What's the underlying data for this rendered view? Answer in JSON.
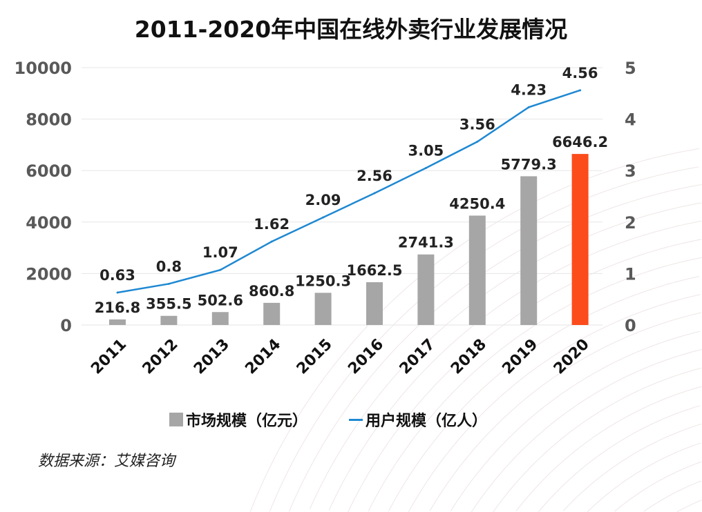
{
  "chart_data": {
    "type": "bar+line",
    "title": "2011-2020年中国在线外卖行业发展情况",
    "categories": [
      "2011",
      "2012",
      "2013",
      "2014",
      "2015",
      "2016",
      "2017",
      "2018",
      "2019",
      "2020"
    ],
    "series": [
      {
        "name": "市场规模（亿元）",
        "type": "bar",
        "axis": "left",
        "values": [
          216.8,
          355.5,
          502.6,
          860.8,
          1250.3,
          1662.5,
          2741.3,
          4250.4,
          5779.3,
          6646.2
        ],
        "color": "#a6a6a6",
        "highlight_color": "#fc4c1c",
        "highlight_index": 9
      },
      {
        "name": "用户规模（亿人）",
        "type": "line",
        "axis": "right",
        "values": [
          0.63,
          0.8,
          1.07,
          1.62,
          2.09,
          2.56,
          3.05,
          3.56,
          4.23,
          4.56
        ],
        "color": "#1e88d2"
      }
    ],
    "y_left": {
      "ylim": [
        0,
        10000
      ],
      "ticks": [
        "0",
        "2000",
        "4000",
        "6000",
        "8000",
        "10000"
      ]
    },
    "y_right": {
      "ylim": [
        0,
        5
      ],
      "ticks": [
        "0",
        "1",
        "2",
        "3",
        "4",
        "5"
      ]
    },
    "grid": true,
    "legend": "bottom"
  },
  "legend": {
    "bar_label": "市场规模（亿元）",
    "line_label": "用户规模（亿人）"
  },
  "source": "数据来源：艾媒咨询"
}
